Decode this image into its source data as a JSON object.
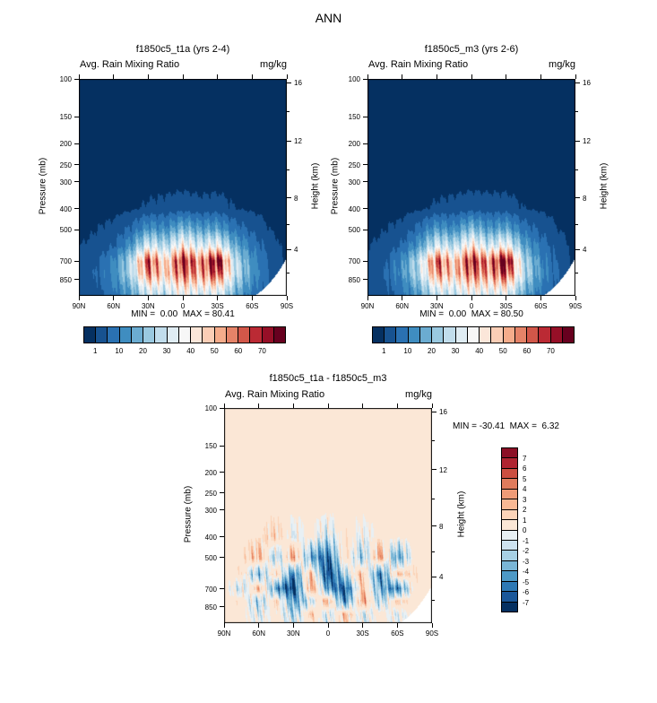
{
  "page": {
    "title": "ANN"
  },
  "panels": [
    {
      "title": "f1850c5_t1a (yrs 2-4)",
      "header_left": "Avg. Rain Mixing Ratio",
      "header_right": "mg/kg",
      "ylabel_left": "Pressure (mb)",
      "ylabel_right": "Height (km)",
      "stats": "MIN =  0.00  MAX = 80.41"
    },
    {
      "title": "f1850c5_m3 (yrs 2-6)",
      "header_left": "Avg. Rain Mixing Ratio",
      "header_right": "mg/kg",
      "ylabel_left": "Pressure (mb)",
      "ylabel_right": "Height (km)",
      "stats": "MIN =  0.00  MAX = 80.50"
    },
    {
      "title": "f1850c5_t1a - f1850c5_m3",
      "header_left": "Avg. Rain Mixing Ratio",
      "header_right": "mg/kg",
      "ylabel_left": "Pressure (mb)",
      "ylabel_right": "Height (km)",
      "stats": "MIN = -30.41  MAX =  6.32"
    }
  ],
  "chart_data": [
    {
      "type": "heatmap",
      "title": "f1850c5_t1a (yrs 2-4)",
      "variable": "Avg. Rain Mixing Ratio",
      "units": "mg/kg",
      "min": 0.0,
      "max": 80.41,
      "diverging": false,
      "seed": 0.7,
      "x_ticks": [
        "90N",
        "60N",
        "30N",
        "0",
        "30S",
        "60S",
        "90S"
      ],
      "x_tick_lats": [
        90,
        60,
        30,
        0,
        -30,
        -60,
        -90
      ],
      "y_left": {
        "label": "Pressure (mb)",
        "scale": "log",
        "range": [
          100,
          1013
        ],
        "ticks": [
          100,
          150,
          200,
          250,
          300,
          400,
          500,
          700,
          850
        ]
      },
      "y_right": {
        "label": "Height (km)",
        "ticks": [
          16,
          12,
          8,
          4
        ],
        "tick_pressures": [
          104,
          194,
          357,
          616
        ],
        "minor_ticks": [
          14,
          10,
          6,
          2
        ],
        "minor_tick_pressures": [
          142,
          265,
          472,
          795
        ]
      },
      "contour_levels": [
        1,
        5,
        10,
        15,
        20,
        25,
        30,
        35,
        40,
        45,
        50,
        55,
        60,
        65,
        70,
        75
      ],
      "colorbar_labels": [
        "1",
        "10",
        "20",
        "30",
        "40",
        "50",
        "60",
        "70"
      ],
      "palette": [
        "#053061",
        "#175290",
        "#2a71b2",
        "#3f8dc0",
        "#6bacd1",
        "#9ac9e0",
        "#c1ddec",
        "#dfecf3",
        "#f7f7f7",
        "#fbe6d9",
        "#fbceb6",
        "#f5ac8b",
        "#e58368",
        "#d25749",
        "#bb2a34",
        "#960f27",
        "#67001f"
      ],
      "grid": {
        "lat": [
          90,
          75,
          60,
          45,
          30,
          15,
          0,
          -15,
          -30,
          -45,
          -60,
          -75,
          -90
        ],
        "pressure": [
          100,
          300,
          400,
          500,
          600,
          700,
          800,
          925,
          1013
        ],
        "values": [
          [
            0,
            0,
            0,
            0,
            0,
            0,
            0,
            0,
            0,
            0,
            0,
            0,
            0
          ],
          [
            0,
            0,
            0,
            0,
            0,
            0,
            0,
            0,
            0,
            0,
            0,
            0,
            0
          ],
          [
            0,
            0,
            0,
            0.5,
            1.5,
            2,
            3,
            2,
            2.5,
            1,
            0.5,
            0,
            0
          ],
          [
            0,
            1,
            2,
            6,
            14,
            12,
            20,
            15,
            16,
            8,
            4,
            1,
            0
          ],
          [
            1,
            2,
            5,
            14,
            34,
            26,
            42,
            32,
            38,
            18,
            9,
            3,
            0
          ],
          [
            2,
            4,
            11,
            26,
            66,
            42,
            72,
            54,
            78,
            28,
            13,
            4,
            0
          ],
          [
            2,
            5,
            12,
            26,
            58,
            45,
            62,
            52,
            66,
            30,
            14,
            5,
            0
          ],
          [
            2,
            4,
            9,
            18,
            38,
            32,
            44,
            38,
            42,
            22,
            11,
            4,
            0
          ],
          [
            2,
            3,
            7,
            14,
            30,
            26,
            36,
            30,
            32,
            17,
            8,
            3,
            0
          ]
        ]
      }
    },
    {
      "type": "heatmap",
      "title": "f1850c5_m3 (yrs 2-6)",
      "variable": "Avg. Rain Mixing Ratio",
      "units": "mg/kg",
      "min": 0.0,
      "max": 80.5,
      "diverging": false,
      "seed": 2.4,
      "x_ticks": [
        "90N",
        "60N",
        "30N",
        "0",
        "30S",
        "60S",
        "90S"
      ],
      "x_tick_lats": [
        90,
        60,
        30,
        0,
        -30,
        -60,
        -90
      ],
      "y_left": {
        "label": "Pressure (mb)",
        "scale": "log",
        "range": [
          100,
          1013
        ],
        "ticks": [
          100,
          150,
          200,
          250,
          300,
          400,
          500,
          700,
          850
        ]
      },
      "y_right": {
        "label": "Height (km)",
        "ticks": [
          16,
          12,
          8,
          4
        ],
        "tick_pressures": [
          104,
          194,
          357,
          616
        ],
        "minor_ticks": [
          14,
          10,
          6,
          2
        ],
        "minor_tick_pressures": [
          142,
          265,
          472,
          795
        ]
      },
      "contour_levels": [
        1,
        5,
        10,
        15,
        20,
        25,
        30,
        35,
        40,
        45,
        50,
        55,
        60,
        65,
        70,
        75
      ],
      "colorbar_labels": [
        "1",
        "10",
        "20",
        "30",
        "40",
        "50",
        "60",
        "70"
      ],
      "palette": [
        "#053061",
        "#175290",
        "#2a71b2",
        "#3f8dc0",
        "#6bacd1",
        "#9ac9e0",
        "#c1ddec",
        "#dfecf3",
        "#f7f7f7",
        "#fbe6d9",
        "#fbceb6",
        "#f5ac8b",
        "#e58368",
        "#d25749",
        "#bb2a34",
        "#960f27",
        "#67001f"
      ],
      "grid": {
        "lat": [
          90,
          75,
          60,
          45,
          30,
          15,
          0,
          -15,
          -30,
          -45,
          -60,
          -75,
          -90
        ],
        "pressure": [
          100,
          300,
          400,
          500,
          600,
          700,
          800,
          925,
          1013
        ],
        "values": [
          [
            0,
            0,
            0,
            0,
            0,
            0,
            0,
            0,
            0,
            0,
            0,
            0,
            0
          ],
          [
            0,
            0,
            0,
            0,
            0,
            0,
            0,
            0,
            0,
            0,
            0,
            0,
            0
          ],
          [
            0,
            0,
            0,
            0.5,
            1.5,
            2,
            3,
            2.5,
            2.5,
            1,
            0.5,
            0,
            0
          ],
          [
            0,
            1,
            2,
            7,
            15,
            12,
            21,
            14,
            17,
            8,
            4,
            1,
            0
          ],
          [
            1,
            2,
            6,
            15,
            33,
            27,
            43,
            30,
            40,
            17,
            8,
            3,
            0
          ],
          [
            2,
            4,
            12,
            28,
            64,
            44,
            70,
            56,
            80,
            26,
            12,
            4,
            0
          ],
          [
            2,
            5,
            13,
            27,
            56,
            46,
            61,
            53,
            67,
            29,
            13,
            5,
            0
          ],
          [
            2,
            4,
            9,
            19,
            37,
            33,
            43,
            39,
            43,
            21,
            10,
            4,
            0
          ],
          [
            2,
            3,
            7,
            15,
            29,
            27,
            35,
            31,
            33,
            16,
            8,
            3,
            0
          ]
        ]
      }
    },
    {
      "type": "heatmap",
      "title": "f1850c5_t1a - f1850c5_m3",
      "variable": "Avg. Rain Mixing Ratio",
      "units": "mg/kg",
      "min": -30.41,
      "max": 6.32,
      "diverging": true,
      "seed": 1.1,
      "x_ticks": [
        "90N",
        "60N",
        "30N",
        "0",
        "30S",
        "60S",
        "90S"
      ],
      "x_tick_lats": [
        90,
        60,
        30,
        0,
        -30,
        -60,
        -90
      ],
      "y_left": {
        "label": "Pressure (mb)",
        "scale": "log",
        "range": [
          100,
          1013
        ],
        "ticks": [
          100,
          150,
          200,
          250,
          300,
          400,
          500,
          700,
          850
        ]
      },
      "y_right": {
        "label": "Height (km)",
        "ticks": [
          16,
          12,
          8,
          4
        ],
        "tick_pressures": [
          104,
          194,
          357,
          616
        ],
        "minor_ticks": [
          14,
          10,
          6,
          2
        ],
        "minor_tick_pressures": [
          142,
          265,
          472,
          795
        ]
      },
      "contour_levels": [
        -7,
        -6,
        -5,
        -4,
        -3,
        -2,
        -1,
        0,
        1,
        2,
        3,
        4,
        5,
        6,
        7
      ],
      "colorbar_labels": [
        "7",
        "6",
        "5",
        "4",
        "3",
        "2",
        "1",
        "0",
        "-1",
        "-2",
        "-3",
        "-4",
        "-5",
        "-6",
        "-7"
      ],
      "palette": [
        "#053061",
        "#1a5799",
        "#2e79b5",
        "#4d99c6",
        "#7ab6d6",
        "#a7d0e4",
        "#cde2ef",
        "#e8f0f4",
        "#fbe7d6",
        "#fbd3b8",
        "#f8b894",
        "#ef9b77",
        "#e07b5c",
        "#cc4f41",
        "#b02431",
        "#8c0f26"
      ],
      "grid": {
        "lat": [
          90,
          75,
          60,
          45,
          30,
          15,
          0,
          -15,
          -30,
          -45,
          -60,
          -75,
          -90
        ],
        "pressure": [
          100,
          300,
          400,
          500,
          600,
          700,
          800,
          925,
          1013
        ],
        "values": [
          [
            0.4,
            0.4,
            0.4,
            0.4,
            0.4,
            0.4,
            0.4,
            0.4,
            0.4,
            0.4,
            0.4,
            0.4,
            0.4
          ],
          [
            0.4,
            0.4,
            0.4,
            0.4,
            0.4,
            0.4,
            0.4,
            0.4,
            0.4,
            0.4,
            0.4,
            0.4,
            0.4
          ],
          [
            0.4,
            0.4,
            0.6,
            1.6,
            -0.8,
            0.5,
            -1.5,
            0.8,
            -0.6,
            0.5,
            0.4,
            0.4,
            0.4
          ],
          [
            0.4,
            0.6,
            2.6,
            -2.5,
            3.5,
            -4,
            -6,
            1.5,
            -3,
            3.5,
            -4.5,
            0.6,
            0.4
          ],
          [
            0.4,
            0.8,
            -3.5,
            2,
            -5.5,
            2.5,
            -7.5,
            -2,
            2.5,
            -5.5,
            2,
            0.8,
            0.4
          ],
          [
            0.4,
            -1.5,
            2.5,
            -4.5,
            -7.5,
            3.5,
            -4.5,
            -6.5,
            1.8,
            -3.5,
            -5.5,
            0.5,
            0.4
          ],
          [
            0.4,
            0.8,
            -2.5,
            1.5,
            -4.5,
            -1.5,
            2.8,
            -5.5,
            3.5,
            -2.5,
            1.5,
            0.4,
            0.4
          ],
          [
            0.4,
            0.5,
            -1,
            0.8,
            -2.5,
            1.8,
            -1.5,
            2.5,
            -1.5,
            0.8,
            -0.8,
            0.4,
            0.4
          ],
          [
            0.4,
            0.4,
            -0.5,
            0.5,
            -1.5,
            1,
            -1,
            1.5,
            -1,
            0.5,
            -0.5,
            0.4,
            0.4
          ]
        ]
      }
    }
  ]
}
